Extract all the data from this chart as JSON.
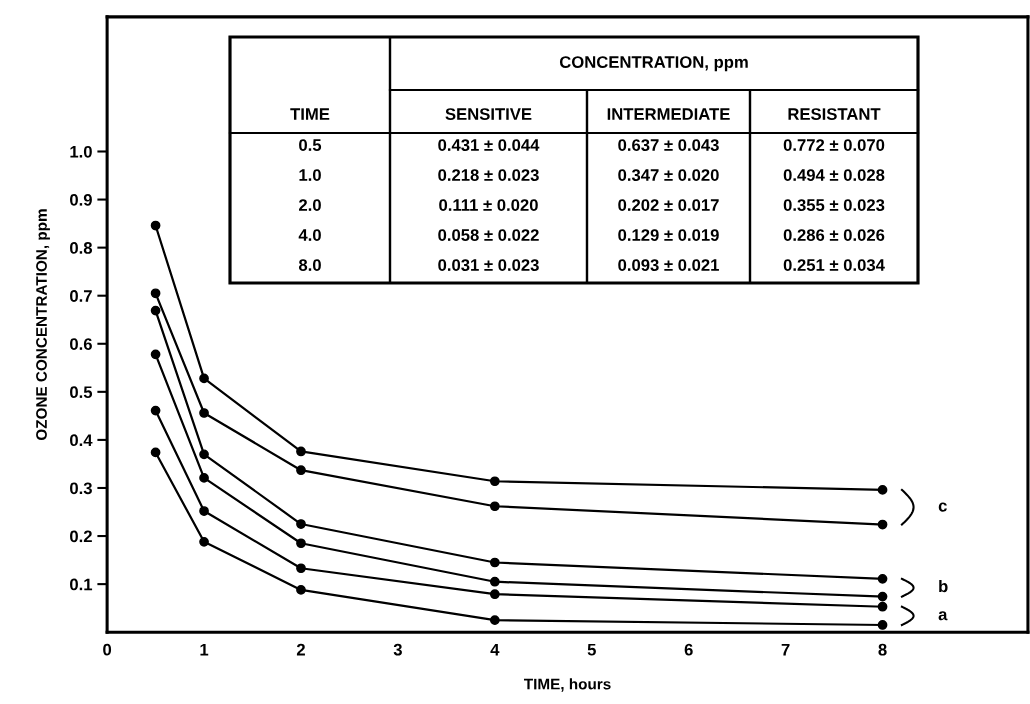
{
  "chart_data": {
    "type": "line",
    "xlabel": "TIME, hours",
    "ylabel": "OZONE CONCENTRATION, ppm",
    "x": [
      0.5,
      1,
      2,
      4,
      8
    ],
    "series": [
      {
        "color": "#000000",
        "values": [
          0.846,
          0.528,
          0.376,
          0.314,
          0.296
        ]
      },
      {
        "color": "#000000",
        "values": [
          0.705,
          0.456,
          0.337,
          0.262,
          0.224
        ]
      },
      {
        "color": "#000000",
        "values": [
          0.669,
          0.37,
          0.225,
          0.145,
          0.111
        ]
      },
      {
        "color": "#000000",
        "values": [
          0.578,
          0.321,
          0.185,
          0.105,
          0.074
        ]
      },
      {
        "color": "#000000",
        "values": [
          0.461,
          0.252,
          0.133,
          0.079,
          0.053
        ]
      },
      {
        "color": "#000000",
        "values": [
          0.374,
          0.188,
          0.088,
          0.025,
          0.015
        ]
      }
    ],
    "marker": "circle",
    "line_style": "solid",
    "xlim": [
      0,
      9.5
    ],
    "xticks": [
      0,
      1,
      2,
      3,
      4,
      5,
      6,
      7,
      8
    ],
    "ylim": [
      0,
      1.28
    ],
    "yticks": [
      0.1,
      0.2,
      0.3,
      0.4,
      0.5,
      0.6,
      0.7,
      0.8,
      0.9,
      {
        "value": 1,
        "label": "1.0"
      }
    ],
    "annotations": [
      "CONCENTRATION, ppm",
      "TIME",
      "SENSITIVE",
      "INTERMEDIATE",
      "RESISTANT",
      "0.5",
      "0.431 ± 0.044",
      "0.637 ± 0.043",
      "0.772 ± 0.070",
      "1.0",
      "0.218 ± 0.023",
      "0.347 ± 0.020",
      "0.494 ± 0.028",
      "2.0",
      "0.111 ± 0.020",
      "0.202 ± 0.017",
      "0.355 ± 0.023",
      "4.0",
      "0.058 ± 0.022",
      "0.129 ± 0.019",
      "0.286 ± 0.026",
      "8.0",
      "0.031 ± 0.023",
      "0.093 ± 0.021",
      "0.251 ± 0.034",
      "c",
      "b",
      "a"
    ]
  }
}
